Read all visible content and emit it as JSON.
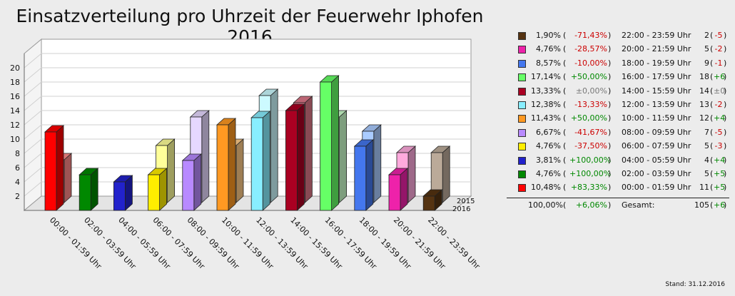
{
  "chart_data": {
    "type": "bar",
    "title": "Einsatzverteilung pro Uhrzeit der Feuerwehr Iphofen 2016",
    "categories": [
      "00:00 - 01:59 Uhr",
      "02:00 - 03:59 Uhr",
      "04:00 - 05:59 Uhr",
      "06:00 - 07:59 Uhr",
      "08:00 - 09:59 Uhr",
      "10:00 - 11:59 Uhr",
      "12:00 - 13:59 Uhr",
      "14:00 - 15:59 Uhr",
      "16:00 - 17:59 Uhr",
      "18:00 - 19:59 Uhr",
      "20:00 - 21:59 Uhr",
      "22:00 - 23:59 Uhr"
    ],
    "series": [
      {
        "name": "2016",
        "values": [
          11,
          5,
          4,
          5,
          7,
          12,
          13,
          14,
          18,
          9,
          5,
          2
        ]
      },
      {
        "name": "2015",
        "values": [
          6,
          0,
          0,
          8,
          12,
          8,
          15,
          14,
          12,
          10,
          7,
          7
        ]
      }
    ],
    "colors": [
      "#ff0000",
      "#008800",
      "#2222cc",
      "#ffee00",
      "#b88aff",
      "#ff9922",
      "#88eeff",
      "#aa0022",
      "#66ff66",
      "#4477ee",
      "#ee22aa",
      "#553311"
    ],
    "colors_2015": [
      "#ff8888",
      "#88cc88",
      "#9999ee",
      "#ffff99",
      "#e6d8ff",
      "#ffcc88",
      "#ccfaff",
      "#dd7788",
      "#ccffcc",
      "#aaccff",
      "#ffaadd",
      "#bbaa99"
    ],
    "yticks": [
      2,
      4,
      6,
      8,
      10,
      12,
      14,
      16,
      18,
      20
    ],
    "ylim": [
      0,
      22
    ],
    "grid": true,
    "depth_labels": [
      "2015",
      "2016"
    ]
  },
  "legend": {
    "rows": [
      {
        "pct": "1,90%",
        "chg": "-71,43%",
        "chg_kind": "neg",
        "range": "22:00 - 23:59 Uhr",
        "count": "2",
        "delta": "-5",
        "delta_kind": "neg",
        "color": "#553311"
      },
      {
        "pct": "4,76%",
        "chg": "-28,57%",
        "chg_kind": "neg",
        "range": "20:00 - 21:59 Uhr",
        "count": "5",
        "delta": "-2",
        "delta_kind": "neg",
        "color": "#ee22aa"
      },
      {
        "pct": "8,57%",
        "chg": "-10,00%",
        "chg_kind": "neg",
        "range": "18:00 - 19:59 Uhr",
        "count": "9",
        "delta": "-1",
        "delta_kind": "neg",
        "color": "#4477ee"
      },
      {
        "pct": "17,14%",
        "chg": "+50,00%",
        "chg_kind": "pos",
        "range": "16:00 - 17:59 Uhr",
        "count": "18",
        "delta": "+6",
        "delta_kind": "pos",
        "color": "#66ff66"
      },
      {
        "pct": "13,33%",
        "chg": "±0,00%",
        "chg_kind": "zero",
        "range": "14:00 - 15:59 Uhr",
        "count": "14",
        "delta": "±0",
        "delta_kind": "zero",
        "color": "#aa0022"
      },
      {
        "pct": "12,38%",
        "chg": "-13,33%",
        "chg_kind": "neg",
        "range": "12:00 - 13:59 Uhr",
        "count": "13",
        "delta": "-2",
        "delta_kind": "neg",
        "color": "#88eeff"
      },
      {
        "pct": "11,43%",
        "chg": "+50,00%",
        "chg_kind": "pos",
        "range": "10:00 - 11:59 Uhr",
        "count": "12",
        "delta": "+4",
        "delta_kind": "pos",
        "color": "#ff9922"
      },
      {
        "pct": "6,67%",
        "chg": "-41,67%",
        "chg_kind": "neg",
        "range": "08:00 - 09:59 Uhr",
        "count": "7",
        "delta": "-5",
        "delta_kind": "neg",
        "color": "#b88aff"
      },
      {
        "pct": "4,76%",
        "chg": "-37,50%",
        "chg_kind": "neg",
        "range": "06:00 - 07:59 Uhr",
        "count": "5",
        "delta": "-3",
        "delta_kind": "neg",
        "color": "#ffee00"
      },
      {
        "pct": "3,81%",
        "chg": "+100,00%",
        "chg_kind": "pos",
        "range": "04:00 - 05:59 Uhr",
        "count": "4",
        "delta": "+4",
        "delta_kind": "pos",
        "color": "#2222cc"
      },
      {
        "pct": "4,76%",
        "chg": "+100,00%",
        "chg_kind": "pos",
        "range": "02:00 - 03:59 Uhr",
        "count": "5",
        "delta": "+5",
        "delta_kind": "pos",
        "color": "#008800"
      },
      {
        "pct": "10,48%",
        "chg": "+83,33%",
        "chg_kind": "pos",
        "range": "00:00 - 01:59 Uhr",
        "count": "11",
        "delta": "+5",
        "delta_kind": "pos",
        "color": "#ff0000"
      }
    ],
    "total": {
      "pct": "100,00%",
      "chg": "+6,06%",
      "chg_kind": "pos",
      "label": "Gesamt:",
      "count": "105",
      "delta": "+6",
      "delta_kind": "pos"
    },
    "paren_left": "(",
    "paren_right": ")"
  },
  "footer": {
    "stand": "Stand: 31.12.2016"
  }
}
